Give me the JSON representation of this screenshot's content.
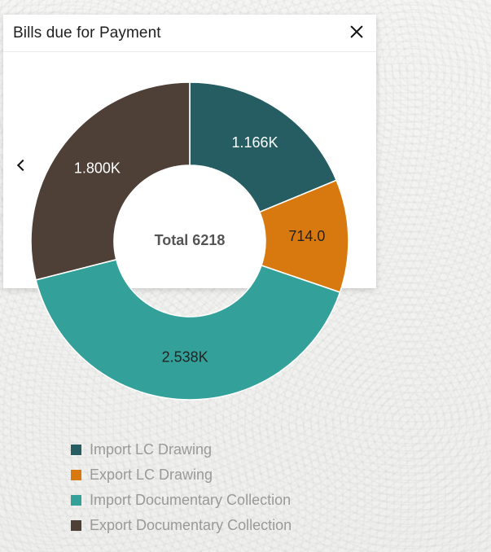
{
  "card": {
    "title": "Bills due for Payment"
  },
  "icons": {
    "close": "close-icon",
    "previous": "chevron-left-icon"
  },
  "chart_data": {
    "type": "pie",
    "title": "Bills due for Payment",
    "center_label": "Total 6218",
    "total": 6218,
    "categories": [
      "Import LC Drawing",
      "Export LC Drawing",
      "Import Documentary Collection",
      "Export Documentary Collection"
    ],
    "values": [
      1166,
      714,
      2538,
      1800
    ],
    "data_labels": [
      "1.166K",
      "714.0",
      "2.538K",
      "1.800K"
    ],
    "colors": [
      "#255d63",
      "#d8790f",
      "#33a19a",
      "#4e4037"
    ],
    "label_colors": [
      "#ffffff",
      "#222222",
      "#222222",
      "#ffffff"
    ],
    "legend_placement": "bottom"
  }
}
